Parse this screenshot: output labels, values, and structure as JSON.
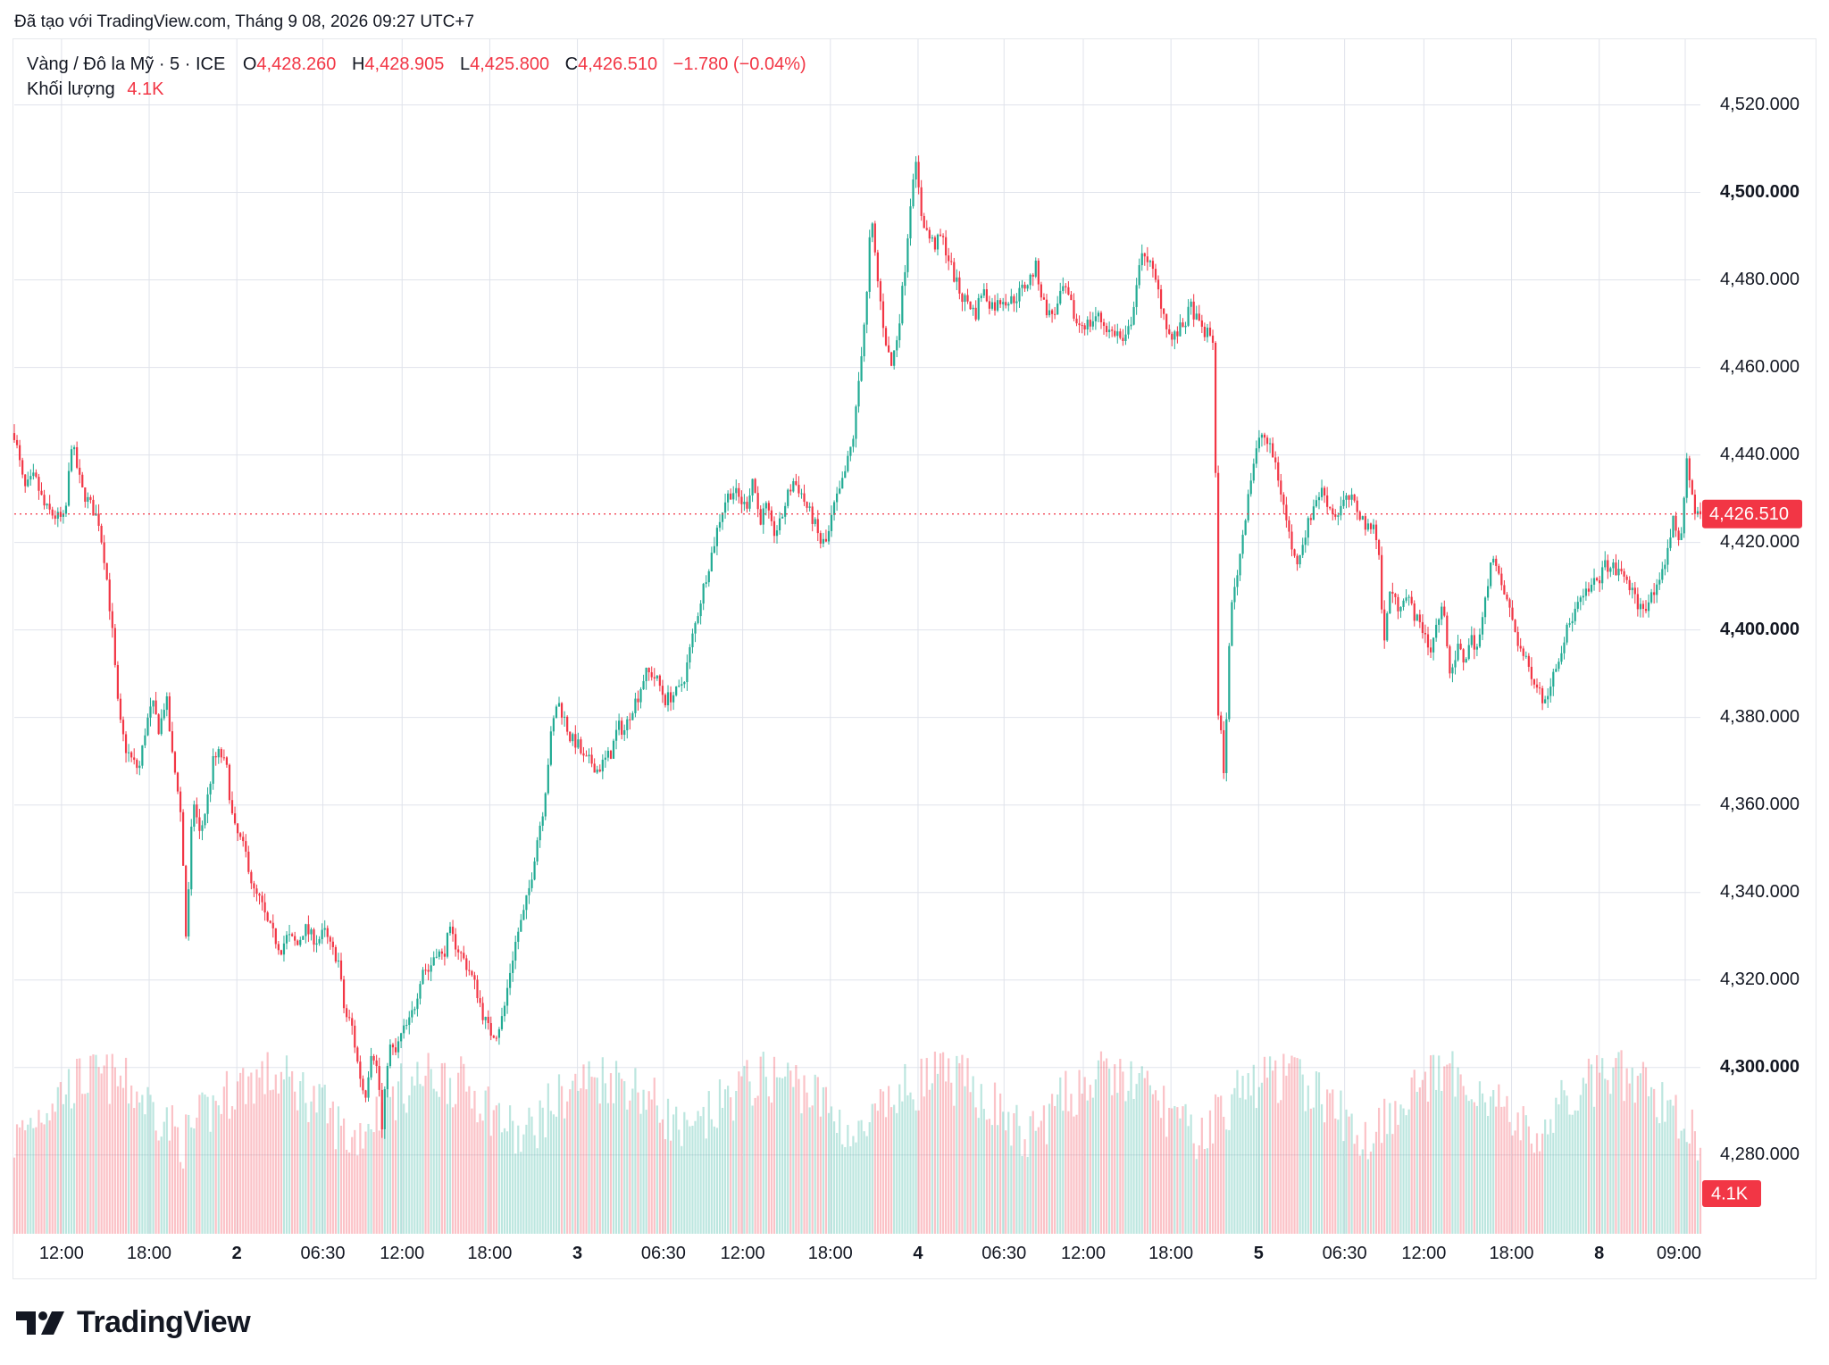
{
  "credit": "Đã tạo với TradingView.com, Tháng 9 08, 2026 09:27 UTC+7",
  "legend": {
    "symbol": "Vàng / Đô la Mỹ · 5 · ICE",
    "open_label": "O",
    "open": "4,428.260",
    "high_label": "H",
    "high": "4,428.905",
    "low_label": "L",
    "low": "4,425.800",
    "close_label": "C",
    "close": "4,426.510",
    "change": "−1.780 (−0.04%)",
    "volume_label": "Khối lượng",
    "volume": "4.1K"
  },
  "brand": {
    "name": "TradingView",
    "logo": "tradingview-logo-icon"
  },
  "colors": {
    "up": "#22ab94",
    "down": "#f23645",
    "grid": "#e0e3eb",
    "text": "#131722"
  },
  "chart_data": {
    "type": "candlestick",
    "price_tag": "4,426.510",
    "volume_tag": "4.1K",
    "ylim": [
      4262,
      4535
    ],
    "y_ticks": [
      {
        "label": "4,520.000",
        "value": 4520,
        "bold": false
      },
      {
        "label": "4,500.000",
        "value": 4500,
        "bold": true
      },
      {
        "label": "4,480.000",
        "value": 4480,
        "bold": false
      },
      {
        "label": "4,460.000",
        "value": 4460,
        "bold": false
      },
      {
        "label": "4,440.000",
        "value": 4440,
        "bold": false
      },
      {
        "label": "4,420.000",
        "value": 4420,
        "bold": false
      },
      {
        "label": "4,400.000",
        "value": 4400,
        "bold": true
      },
      {
        "label": "4,380.000",
        "value": 4380,
        "bold": false
      },
      {
        "label": "4,360.000",
        "value": 4360,
        "bold": false
      },
      {
        "label": "4,340.000",
        "value": 4340,
        "bold": false
      },
      {
        "label": "4,320.000",
        "value": 4320,
        "bold": false
      },
      {
        "label": "4,300.000",
        "value": 4300,
        "bold": true
      },
      {
        "label": "4,280.000",
        "value": 4280,
        "bold": false
      }
    ],
    "x_ticks": [
      {
        "label": "12:00",
        "t": 0.028,
        "bold": false
      },
      {
        "label": "18:00",
        "t": 0.08,
        "bold": false
      },
      {
        "label": "2",
        "t": 0.132,
        "bold": true
      },
      {
        "label": "06:30",
        "t": 0.183,
        "bold": false
      },
      {
        "label": "12:00",
        "t": 0.23,
        "bold": false
      },
      {
        "label": "18:00",
        "t": 0.282,
        "bold": false
      },
      {
        "label": "3",
        "t": 0.334,
        "bold": true
      },
      {
        "label": "06:30",
        "t": 0.385,
        "bold": false
      },
      {
        "label": "12:00",
        "t": 0.432,
        "bold": false
      },
      {
        "label": "18:00",
        "t": 0.484,
        "bold": false
      },
      {
        "label": "4",
        "t": 0.536,
        "bold": true
      },
      {
        "label": "06:30",
        "t": 0.587,
        "bold": false
      },
      {
        "label": "12:00",
        "t": 0.634,
        "bold": false
      },
      {
        "label": "18:00",
        "t": 0.686,
        "bold": false
      },
      {
        "label": "5",
        "t": 0.738,
        "bold": true
      },
      {
        "label": "06:30",
        "t": 0.789,
        "bold": false
      },
      {
        "label": "12:00",
        "t": 0.836,
        "bold": false
      },
      {
        "label": "18:00",
        "t": 0.888,
        "bold": false
      },
      {
        "label": "8",
        "t": 0.94,
        "bold": true
      },
      {
        "label": "09:00",
        "t": 0.991,
        "bold": false
      }
    ],
    "price_path": [
      [
        0.0,
        4445
      ],
      [
        0.006,
        4432
      ],
      [
        0.012,
        4435
      ],
      [
        0.018,
        4428
      ],
      [
        0.024,
        4426
      ],
      [
        0.03,
        4425
      ],
      [
        0.034,
        4443
      ],
      [
        0.04,
        4432
      ],
      [
        0.046,
        4428
      ],
      [
        0.05,
        4425
      ],
      [
        0.054,
        4415
      ],
      [
        0.058,
        4400
      ],
      [
        0.062,
        4380
      ],
      [
        0.066,
        4373
      ],
      [
        0.07,
        4370
      ],
      [
        0.074,
        4368
      ],
      [
        0.078,
        4378
      ],
      [
        0.082,
        4383
      ],
      [
        0.086,
        4377
      ],
      [
        0.09,
        4385
      ],
      [
        0.094,
        4370
      ],
      [
        0.098,
        4362
      ],
      [
        0.1,
        4348
      ],
      [
        0.102,
        4328
      ],
      [
        0.106,
        4362
      ],
      [
        0.11,
        4353
      ],
      [
        0.114,
        4360
      ],
      [
        0.118,
        4370
      ],
      [
        0.122,
        4372
      ],
      [
        0.126,
        4368
      ],
      [
        0.13,
        4355
      ],
      [
        0.134,
        4352
      ],
      [
        0.138,
        4348
      ],
      [
        0.142,
        4340
      ],
      [
        0.146,
        4338
      ],
      [
        0.15,
        4333
      ],
      [
        0.154,
        4330
      ],
      [
        0.158,
        4327
      ],
      [
        0.162,
        4330
      ],
      [
        0.168,
        4328
      ],
      [
        0.172,
        4332
      ],
      [
        0.176,
        4330
      ],
      [
        0.18,
        4329
      ],
      [
        0.184,
        4331
      ],
      [
        0.188,
        4327
      ],
      [
        0.192,
        4325
      ],
      [
        0.196,
        4312
      ],
      [
        0.2,
        4310
      ],
      [
        0.204,
        4300
      ],
      [
        0.208,
        4293
      ],
      [
        0.212,
        4305
      ],
      [
        0.216,
        4298
      ],
      [
        0.218,
        4285
      ],
      [
        0.222,
        4305
      ],
      [
        0.226,
        4303
      ],
      [
        0.23,
        4308
      ],
      [
        0.234,
        4310
      ],
      [
        0.238,
        4315
      ],
      [
        0.242,
        4323
      ],
      [
        0.246,
        4322
      ],
      [
        0.25,
        4327
      ],
      [
        0.254,
        4325
      ],
      [
        0.258,
        4331
      ],
      [
        0.262,
        4328
      ],
      [
        0.266,
        4325
      ],
      [
        0.27,
        4322
      ],
      [
        0.274,
        4318
      ],
      [
        0.278,
        4312
      ],
      [
        0.282,
        4308
      ],
      [
        0.286,
        4308
      ],
      [
        0.29,
        4312
      ],
      [
        0.294,
        4322
      ],
      [
        0.298,
        4330
      ],
      [
        0.302,
        4335
      ],
      [
        0.306,
        4342
      ],
      [
        0.31,
        4352
      ],
      [
        0.314,
        4360
      ],
      [
        0.318,
        4375
      ],
      [
        0.322,
        4384
      ],
      [
        0.326,
        4380
      ],
      [
        0.33,
        4375
      ],
      [
        0.334,
        4374
      ],
      [
        0.338,
        4370
      ],
      [
        0.342,
        4370
      ],
      [
        0.346,
        4368
      ],
      [
        0.35,
        4370
      ],
      [
        0.354,
        4372
      ],
      [
        0.358,
        4378
      ],
      [
        0.362,
        4377
      ],
      [
        0.366,
        4382
      ],
      [
        0.37,
        4385
      ],
      [
        0.374,
        4390
      ],
      [
        0.378,
        4390
      ],
      [
        0.382,
        4388
      ],
      [
        0.386,
        4384
      ],
      [
        0.39,
        4385
      ],
      [
        0.394,
        4386
      ],
      [
        0.398,
        4390
      ],
      [
        0.402,
        4398
      ],
      [
        0.406,
        4405
      ],
      [
        0.41,
        4412
      ],
      [
        0.414,
        4418
      ],
      [
        0.418,
        4425
      ],
      [
        0.422,
        4430
      ],
      [
        0.426,
        4432
      ],
      [
        0.43,
        4430
      ],
      [
        0.434,
        4428
      ],
      [
        0.438,
        4435
      ],
      [
        0.442,
        4425
      ],
      [
        0.446,
        4428
      ],
      [
        0.45,
        4422
      ],
      [
        0.454,
        4424
      ],
      [
        0.458,
        4430
      ],
      [
        0.462,
        4434
      ],
      [
        0.466,
        4432
      ],
      [
        0.47,
        4428
      ],
      [
        0.474,
        4425
      ],
      [
        0.478,
        4420
      ],
      [
        0.482,
        4420
      ],
      [
        0.486,
        4428
      ],
      [
        0.49,
        4432
      ],
      [
        0.494,
        4438
      ],
      [
        0.498,
        4445
      ],
      [
        0.502,
        4462
      ],
      [
        0.506,
        4478
      ],
      [
        0.508,
        4495
      ],
      [
        0.512,
        4480
      ],
      [
        0.516,
        4468
      ],
      [
        0.52,
        4460
      ],
      [
        0.524,
        4468
      ],
      [
        0.528,
        4482
      ],
      [
        0.532,
        4500
      ],
      [
        0.534,
        4508
      ],
      [
        0.538,
        4495
      ],
      [
        0.542,
        4490
      ],
      [
        0.546,
        4488
      ],
      [
        0.55,
        4490
      ],
      [
        0.554,
        4485
      ],
      [
        0.558,
        4480
      ],
      [
        0.562,
        4476
      ],
      [
        0.566,
        4475
      ],
      [
        0.57,
        4472
      ],
      [
        0.574,
        4478
      ],
      [
        0.578,
        4475
      ],
      [
        0.582,
        4474
      ],
      [
        0.586,
        4476
      ],
      [
        0.59,
        4475
      ],
      [
        0.594,
        4476
      ],
      [
        0.598,
        4478
      ],
      [
        0.602,
        4480
      ],
      [
        0.606,
        4483
      ],
      [
        0.61,
        4475
      ],
      [
        0.614,
        4472
      ],
      [
        0.618,
        4473
      ],
      [
        0.622,
        4478
      ],
      [
        0.626,
        4475
      ],
      [
        0.63,
        4470
      ],
      [
        0.634,
        4470
      ],
      [
        0.638,
        4470
      ],
      [
        0.642,
        4472
      ],
      [
        0.646,
        4470
      ],
      [
        0.65,
        4468
      ],
      [
        0.654,
        4468
      ],
      [
        0.658,
        4465
      ],
      [
        0.662,
        4470
      ],
      [
        0.666,
        4480
      ],
      [
        0.67,
        4487
      ],
      [
        0.674,
        4483
      ],
      [
        0.678,
        4478
      ],
      [
        0.682,
        4472
      ],
      [
        0.686,
        4466
      ],
      [
        0.69,
        4468
      ],
      [
        0.694,
        4470
      ],
      [
        0.698,
        4474
      ],
      [
        0.702,
        4470
      ],
      [
        0.706,
        4468
      ],
      [
        0.71,
        4467
      ],
      [
        0.712,
        4465
      ],
      [
        0.713,
        4400
      ],
      [
        0.714,
        4380
      ],
      [
        0.716,
        4375
      ],
      [
        0.718,
        4365
      ],
      [
        0.72,
        4395
      ],
      [
        0.722,
        4405
      ],
      [
        0.726,
        4415
      ],
      [
        0.728,
        4420
      ],
      [
        0.732,
        4432
      ],
      [
        0.736,
        4440
      ],
      [
        0.74,
        4445
      ],
      [
        0.744,
        4442
      ],
      [
        0.748,
        4438
      ],
      [
        0.752,
        4430
      ],
      [
        0.756,
        4422
      ],
      [
        0.76,
        4415
      ],
      [
        0.764,
        4420
      ],
      [
        0.768,
        4425
      ],
      [
        0.772,
        4430
      ],
      [
        0.776,
        4432
      ],
      [
        0.78,
        4428
      ],
      [
        0.784,
        4426
      ],
      [
        0.788,
        4429
      ],
      [
        0.792,
        4430
      ],
      [
        0.796,
        4428
      ],
      [
        0.8,
        4425
      ],
      [
        0.804,
        4422
      ],
      [
        0.806,
        4426
      ],
      [
        0.81,
        4415
      ],
      [
        0.812,
        4395
      ],
      [
        0.816,
        4410
      ],
      [
        0.82,
        4405
      ],
      [
        0.824,
        4408
      ],
      [
        0.828,
        4406
      ],
      [
        0.832,
        4402
      ],
      [
        0.836,
        4400
      ],
      [
        0.84,
        4395
      ],
      [
        0.844,
        4402
      ],
      [
        0.848,
        4405
      ],
      [
        0.852,
        4388
      ],
      [
        0.856,
        4396
      ],
      [
        0.86,
        4393
      ],
      [
        0.864,
        4398
      ],
      [
        0.868,
        4396
      ],
      [
        0.872,
        4405
      ],
      [
        0.876,
        4418
      ],
      [
        0.88,
        4412
      ],
      [
        0.884,
        4408
      ],
      [
        0.888,
        4403
      ],
      [
        0.892,
        4397
      ],
      [
        0.896,
        4393
      ],
      [
        0.9,
        4390
      ],
      [
        0.904,
        4387
      ],
      [
        0.908,
        4383
      ],
      [
        0.912,
        4390
      ],
      [
        0.916,
        4394
      ],
      [
        0.92,
        4399
      ],
      [
        0.924,
        4403
      ],
      [
        0.928,
        4406
      ],
      [
        0.932,
        4408
      ],
      [
        0.936,
        4410
      ],
      [
        0.94,
        4412
      ],
      [
        0.944,
        4415
      ],
      [
        0.948,
        4414
      ],
      [
        0.952,
        4413
      ],
      [
        0.956,
        4412
      ],
      [
        0.96,
        4408
      ],
      [
        0.964,
        4405
      ],
      [
        0.968,
        4406
      ],
      [
        0.972,
        4408
      ],
      [
        0.976,
        4410
      ],
      [
        0.98,
        4418
      ],
      [
        0.984,
        4425
      ],
      [
        0.988,
        4420
      ],
      [
        0.992,
        4438
      ],
      [
        0.994,
        4433
      ],
      [
        0.996,
        4428
      ],
      [
        1.0,
        4426.5
      ]
    ]
  }
}
